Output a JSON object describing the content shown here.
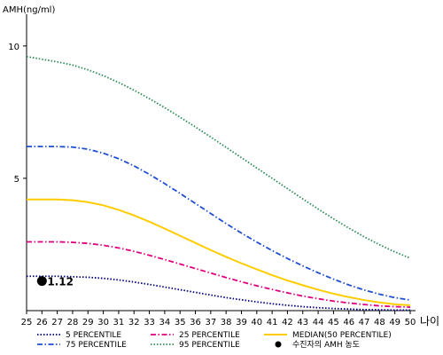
{
  "chart_data": {
    "type": "line",
    "ylabel": "AMH(ng/ml)",
    "xunit": "나이",
    "x": [
      25,
      26,
      27,
      28,
      29,
      30,
      31,
      32,
      33,
      34,
      35,
      36,
      37,
      38,
      39,
      40,
      41,
      42,
      43,
      44,
      45,
      46,
      47,
      48,
      49,
      50
    ],
    "xlim": [
      25,
      50
    ],
    "ylim": [
      0,
      11
    ],
    "yticks": [
      5,
      10
    ],
    "grid": false,
    "legend_position": "bottom",
    "series": [
      {
        "name": "5 PERCENTILE",
        "color": "#000080",
        "dash": "dotted",
        "values": [
          1.3,
          1.3,
          1.3,
          1.28,
          1.26,
          1.22,
          1.16,
          1.08,
          0.99,
          0.89,
          0.79,
          0.69,
          0.59,
          0.49,
          0.41,
          0.33,
          0.26,
          0.2,
          0.15,
          0.11,
          0.08,
          0.06,
          0.04,
          0.03,
          0.02,
          0.02
        ]
      },
      {
        "name": "25 PERCENTILE",
        "color": "#e0007f",
        "dash": "dashdot",
        "values": [
          2.6,
          2.6,
          2.6,
          2.58,
          2.54,
          2.47,
          2.37,
          2.24,
          2.09,
          1.93,
          1.76,
          1.59,
          1.42,
          1.25,
          1.09,
          0.94,
          0.8,
          0.67,
          0.55,
          0.45,
          0.36,
          0.29,
          0.23,
          0.18,
          0.15,
          0.13
        ]
      },
      {
        "name": "MEDIAN(50 PERCENTILE)",
        "color": "#ffcc00",
        "dash": "solid",
        "values": [
          4.2,
          4.2,
          4.2,
          4.17,
          4.1,
          3.98,
          3.81,
          3.6,
          3.36,
          3.1,
          2.83,
          2.56,
          2.29,
          2.03,
          1.79,
          1.56,
          1.34,
          1.14,
          0.96,
          0.79,
          0.64,
          0.51,
          0.4,
          0.31,
          0.24,
          0.2
        ]
      },
      {
        "name": "75 PERCENTILE",
        "color": "#1f4fd0",
        "dash": "dashdot",
        "values": [
          6.2,
          6.2,
          6.2,
          6.18,
          6.1,
          5.95,
          5.74,
          5.47,
          5.15,
          4.8,
          4.43,
          4.05,
          3.67,
          3.29,
          2.93,
          2.59,
          2.27,
          1.97,
          1.69,
          1.43,
          1.19,
          0.97,
          0.78,
          0.62,
          0.49,
          0.4
        ]
      },
      {
        "name": "95 PERCENTILE",
        "color": "#2e8b57",
        "dash": "dotted",
        "values": [
          9.6,
          9.5,
          9.4,
          9.28,
          9.1,
          8.88,
          8.62,
          8.33,
          8.01,
          7.67,
          7.31,
          6.94,
          6.56,
          6.17,
          5.78,
          5.39,
          5.0,
          4.61,
          4.22,
          3.84,
          3.47,
          3.12,
          2.79,
          2.49,
          2.22,
          1.98
        ]
      }
    ],
    "points": [
      {
        "name": "수진자의 AMH 농도",
        "x": 26,
        "y": 1.12,
        "label": "1.12",
        "color": "#000000"
      }
    ]
  }
}
